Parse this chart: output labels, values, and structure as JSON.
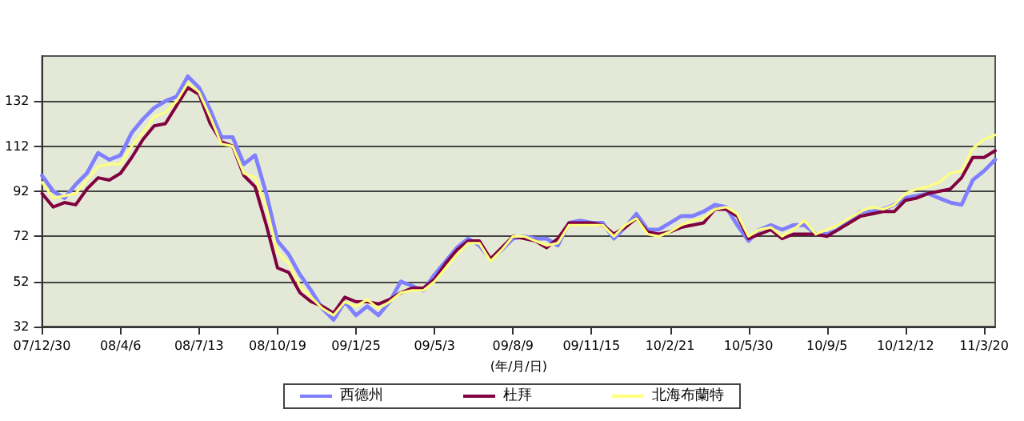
{
  "chart_data": {
    "type": "line",
    "xlabel": "(年/月/日)",
    "x": [
      "2007-12-30",
      "2008-01-13",
      "2008-01-27",
      "2008-02-10",
      "2008-02-24",
      "2008-03-09",
      "2008-03-23",
      "2008-04-06",
      "2008-04-20",
      "2008-05-04",
      "2008-05-18",
      "2008-06-01",
      "2008-06-15",
      "2008-06-29",
      "2008-07-13",
      "2008-07-27",
      "2008-08-10",
      "2008-08-24",
      "2008-09-07",
      "2008-09-21",
      "2008-10-05",
      "2008-10-19",
      "2008-11-02",
      "2008-11-16",
      "2008-11-30",
      "2008-12-14",
      "2008-12-28",
      "2009-01-11",
      "2009-01-25",
      "2009-02-08",
      "2009-02-22",
      "2009-03-08",
      "2009-03-22",
      "2009-04-05",
      "2009-04-19",
      "2009-05-03",
      "2009-05-17",
      "2009-05-31",
      "2009-06-14",
      "2009-06-28",
      "2009-07-12",
      "2009-07-26",
      "2009-08-09",
      "2009-08-23",
      "2009-09-06",
      "2009-09-20",
      "2009-10-04",
      "2009-10-18",
      "2009-11-01",
      "2009-11-15",
      "2009-11-29",
      "2009-12-13",
      "2009-12-27",
      "2010-01-10",
      "2010-01-24",
      "2010-02-07",
      "2010-02-21",
      "2010-03-07",
      "2010-03-21",
      "2010-04-04",
      "2010-04-18",
      "2010-05-02",
      "2010-05-16",
      "2010-05-30",
      "2010-06-13",
      "2010-06-27",
      "2010-07-11",
      "2010-07-25",
      "2010-08-08",
      "2010-08-22",
      "2010-09-05",
      "2010-09-19",
      "2010-10-03",
      "2010-10-17",
      "2010-10-31",
      "2010-11-14",
      "2010-11-28",
      "2010-12-12",
      "2010-12-26",
      "2011-01-09",
      "2011-01-23",
      "2011-02-06",
      "2011-02-20",
      "2011-03-06",
      "2011-03-20",
      "2011-04-03"
    ],
    "series": [
      {
        "name": "西德州",
        "color": "#8080ff",
        "values": [
          99,
          92,
          89,
          95,
          100,
          109,
          106,
          108,
          118,
          124,
          129,
          132,
          134,
          143,
          138,
          128,
          116,
          116,
          104,
          108,
          91,
          70,
          64,
          55,
          48,
          40,
          35,
          43,
          37,
          41,
          37,
          43,
          52,
          50,
          48,
          55,
          61,
          67,
          71,
          68,
          62,
          66,
          71,
          72,
          71,
          71,
          68,
          78,
          79,
          78,
          78,
          71,
          76,
          82,
          75,
          75,
          78,
          81,
          81,
          83,
          86,
          85,
          77,
          70,
          75,
          77,
          75,
          77,
          77,
          73,
          73,
          75,
          79,
          83,
          83,
          84,
          86,
          89,
          90,
          91,
          89,
          87,
          86,
          97,
          101,
          106
        ]
      },
      {
        "name": "杜拜",
        "color": "#800040",
        "values": [
          91,
          85,
          87,
          86,
          93,
          98,
          97,
          100,
          107,
          115,
          121,
          122,
          130,
          138,
          135,
          122,
          114,
          112,
          99,
          94,
          77,
          58,
          56,
          47,
          43,
          41,
          38,
          45,
          43,
          43,
          42,
          44,
          47,
          49,
          49,
          53,
          60,
          66,
          70,
          70,
          62,
          67,
          72,
          71,
          70,
          67,
          71,
          78,
          78,
          78,
          77,
          73,
          76,
          80,
          74,
          73,
          74,
          76,
          77,
          78,
          84,
          84,
          81,
          71,
          73,
          75,
          71,
          73,
          73,
          73,
          72,
          75,
          78,
          81,
          82,
          83,
          83,
          88,
          89,
          91,
          92,
          93,
          98,
          107,
          107,
          110
        ]
      },
      {
        "name": "北海布蘭特",
        "color": "#ffff80",
        "values": [
          96,
          89,
          90,
          91,
          97,
          103,
          104,
          104,
          112,
          118,
          125,
          127,
          132,
          140,
          136,
          125,
          113,
          112,
          100,
          98,
          85,
          65,
          60,
          50,
          45,
          40,
          37,
          43,
          41,
          44,
          40,
          43,
          47,
          48,
          48,
          52,
          58,
          64,
          69,
          69,
          61,
          66,
          72,
          72,
          70,
          68,
          69,
          77,
          77,
          77,
          77,
          72,
          77,
          80,
          73,
          72,
          74,
          77,
          79,
          80,
          84,
          85,
          82,
          72,
          75,
          76,
          72,
          75,
          79,
          73,
          75,
          77,
          80,
          83,
          85,
          84,
          86,
          91,
          93,
          94,
          96,
          100,
          101,
          111,
          115,
          117
        ]
      }
    ],
    "xlim": [
      "2007-12-30",
      "2011-04-03"
    ],
    "xticks": [
      {
        "value": "2007-12-30",
        "label": "07/12/30"
      },
      {
        "value": "2008-04-06",
        "label": "08/4/6"
      },
      {
        "value": "2008-07-13",
        "label": "08/7/13"
      },
      {
        "value": "2008-10-19",
        "label": "08/10/19"
      },
      {
        "value": "2009-01-25",
        "label": "09/1/25"
      },
      {
        "value": "2009-05-03",
        "label": "09/5/3"
      },
      {
        "value": "2009-08-09",
        "label": "09/8/9"
      },
      {
        "value": "2009-11-15",
        "label": "09/11/15"
      },
      {
        "value": "2010-02-21",
        "label": "10/2/21"
      },
      {
        "value": "2010-05-30",
        "label": "10/5/30"
      },
      {
        "value": "2010-09-05",
        "label": "10/9/5"
      },
      {
        "value": "2010-12-12",
        "label": "10/12/12"
      },
      {
        "value": "2011-03-20",
        "label": "11/3/20"
      }
    ],
    "ylim": [
      32,
      152
    ],
    "yticks": [
      32,
      52,
      72,
      92,
      112,
      132
    ],
    "grid": "y",
    "legend": "bottom",
    "marker": "none",
    "line_style": "solid"
  }
}
